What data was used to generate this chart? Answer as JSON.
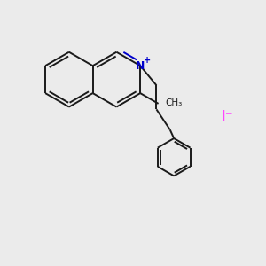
{
  "bg_color": "#ebebeb",
  "bond_color": "#1a1a1a",
  "n_color": "#0000cc",
  "iodide_color": "#ff44ff",
  "bw": 1.4,
  "iodide_label": "I⁻",
  "n_label": "N",
  "plus_label": "+"
}
